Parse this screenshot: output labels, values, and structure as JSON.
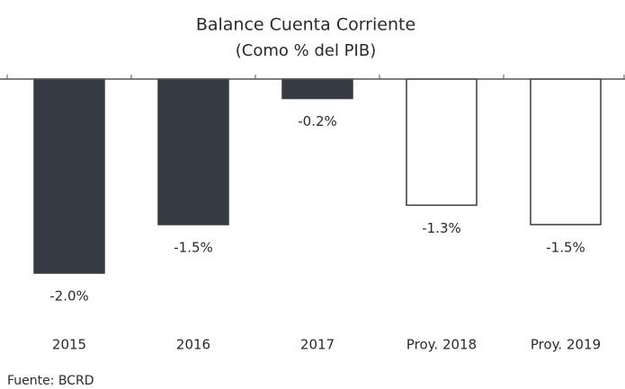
{
  "chart_data": {
    "type": "bar",
    "title": "Balance Cuenta Corriente",
    "subtitle": "(Como % del PIB)",
    "categories": [
      "2015",
      "2016",
      "2017",
      "Proy. 2018",
      "Proy. 2019"
    ],
    "values": [
      -2.0,
      -1.5,
      -0.2,
      -1.3,
      -1.5
    ],
    "value_labels": [
      "-2.0%",
      "-1.5%",
      "-0.2%",
      "-1.3%",
      "-1.5%"
    ],
    "colors": [
      "#363a45",
      "#363a45",
      "#363a45",
      "#ffffff",
      "#ffffff"
    ],
    "edge_color": "#363a45",
    "ylim": [
      -2.0,
      0
    ],
    "source": "Fuente: BCRD"
  }
}
